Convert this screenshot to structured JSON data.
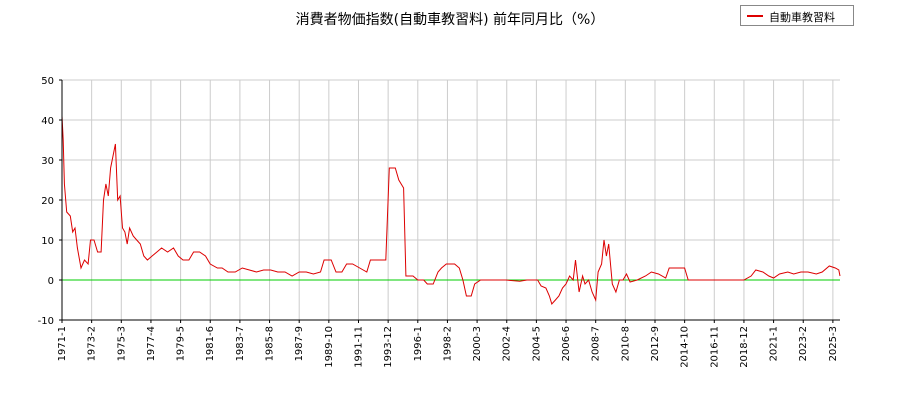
{
  "chart_data": {
    "type": "line",
    "title": "消費者物価指数(自動車教習料) 前年同月比（%）",
    "xlabel": "",
    "ylabel": "",
    "ylim": [
      -10,
      50
    ],
    "yticks": [
      "50",
      "40",
      "30",
      "20",
      "10",
      "0",
      "-10"
    ],
    "x_range": [
      "1971-01",
      "2025-09"
    ],
    "xticks": [
      "1971-1",
      "1973-2",
      "1975-3",
      "1977-4",
      "1979-5",
      "1981-6",
      "1983-7",
      "1985-8",
      "1987-9",
      "1989-10",
      "1991-11",
      "1993-12",
      "1996-1",
      "1998-2",
      "2000-3",
      "2002-4",
      "2004-5",
      "2006-6",
      "2008-7",
      "2010-8",
      "2012-9",
      "2014-10",
      "2016-11",
      "2018-12",
      "2021-1",
      "2023-2",
      "2025-3"
    ],
    "grid": true,
    "legend_position": "top-right",
    "zero_line_color": "#00cc00",
    "series": [
      {
        "name": "自動車教習料",
        "color": "#dd0000",
        "points": [
          [
            "1971-01",
            41
          ],
          [
            "1971-02",
            35
          ],
          [
            "1971-03",
            24
          ],
          [
            "1971-05",
            17
          ],
          [
            "1971-08",
            16
          ],
          [
            "1971-10",
            12
          ],
          [
            "1971-12",
            13
          ],
          [
            "1972-02",
            8
          ],
          [
            "1972-05",
            3
          ],
          [
            "1972-08",
            5
          ],
          [
            "1972-11",
            4
          ],
          [
            "1973-01",
            10
          ],
          [
            "1973-04",
            10
          ],
          [
            "1973-07",
            7
          ],
          [
            "1973-10",
            7
          ],
          [
            "1973-12",
            20
          ],
          [
            "1974-02",
            24
          ],
          [
            "1974-04",
            21
          ],
          [
            "1974-06",
            28
          ],
          [
            "1974-08",
            31
          ],
          [
            "1974-10",
            34
          ],
          [
            "1974-12",
            20
          ],
          [
            "1975-02",
            21
          ],
          [
            "1975-04",
            13
          ],
          [
            "1975-06",
            12
          ],
          [
            "1975-08",
            9
          ],
          [
            "1975-10",
            13
          ],
          [
            "1976-01",
            11
          ],
          [
            "1976-04",
            10
          ],
          [
            "1976-07",
            9
          ],
          [
            "1976-10",
            6
          ],
          [
            "1977-01",
            5
          ],
          [
            "1977-05",
            6
          ],
          [
            "1977-09",
            7
          ],
          [
            "1978-01",
            8
          ],
          [
            "1978-06",
            7
          ],
          [
            "1978-11",
            8
          ],
          [
            "1979-03",
            6
          ],
          [
            "1979-07",
            5
          ],
          [
            "1979-12",
            5
          ],
          [
            "1980-04",
            7
          ],
          [
            "1980-09",
            7
          ],
          [
            "1981-02",
            6
          ],
          [
            "1981-06",
            4
          ],
          [
            "1981-12",
            3
          ],
          [
            "1982-04",
            3
          ],
          [
            "1982-09",
            2
          ],
          [
            "1983-03",
            2
          ],
          [
            "1983-09",
            3
          ],
          [
            "1984-03",
            2.5
          ],
          [
            "1984-09",
            2
          ],
          [
            "1985-03",
            2.5
          ],
          [
            "1985-09",
            2.5
          ],
          [
            "1986-03",
            2
          ],
          [
            "1986-09",
            2
          ],
          [
            "1987-03",
            1
          ],
          [
            "1987-09",
            2
          ],
          [
            "1988-03",
            2
          ],
          [
            "1988-09",
            1.5
          ],
          [
            "1989-03",
            2
          ],
          [
            "1989-06",
            5
          ],
          [
            "1989-12",
            5
          ],
          [
            "1990-04",
            2
          ],
          [
            "1990-09",
            2
          ],
          [
            "1991-01",
            4
          ],
          [
            "1991-06",
            4
          ],
          [
            "1991-12",
            3
          ],
          [
            "1992-06",
            2
          ],
          [
            "1992-09",
            5
          ],
          [
            "1993-03",
            5
          ],
          [
            "1993-10",
            5
          ],
          [
            "1994-01",
            28
          ],
          [
            "1994-06",
            28
          ],
          [
            "1994-09",
            25
          ],
          [
            "1995-01",
            23
          ],
          [
            "1995-03",
            1
          ],
          [
            "1995-09",
            1
          ],
          [
            "1996-01",
            0
          ],
          [
            "1996-06",
            0
          ],
          [
            "1996-09",
            -1
          ],
          [
            "1997-02",
            -1
          ],
          [
            "1997-06",
            2
          ],
          [
            "1997-09",
            3
          ],
          [
            "1998-01",
            4
          ],
          [
            "1998-08",
            4
          ],
          [
            "1998-12",
            3
          ],
          [
            "1999-03",
            0
          ],
          [
            "1999-06",
            -4
          ],
          [
            "1999-10",
            -4
          ],
          [
            "2000-01",
            -1
          ],
          [
            "2000-06",
            0
          ],
          [
            "2001-03",
            0
          ],
          [
            "2002-03",
            0
          ],
          [
            "2003-03",
            -0.3
          ],
          [
            "2003-09",
            0
          ],
          [
            "2004-06",
            0
          ],
          [
            "2004-09",
            -1.5
          ],
          [
            "2005-01",
            -2
          ],
          [
            "2005-04",
            -4
          ],
          [
            "2005-06",
            -6
          ],
          [
            "2005-09",
            -5
          ],
          [
            "2005-12",
            -4
          ],
          [
            "2006-03",
            -2
          ],
          [
            "2006-06",
            -1
          ],
          [
            "2006-09",
            1
          ],
          [
            "2006-12",
            0
          ],
          [
            "2007-02",
            5
          ],
          [
            "2007-05",
            -3
          ],
          [
            "2007-08",
            1
          ],
          [
            "2007-10",
            -1
          ],
          [
            "2008-01",
            0
          ],
          [
            "2008-04",
            -3
          ],
          [
            "2008-07",
            -5
          ],
          [
            "2008-09",
            2
          ],
          [
            "2008-12",
            4
          ],
          [
            "2009-02",
            10
          ],
          [
            "2009-04",
            6
          ],
          [
            "2009-06",
            9
          ],
          [
            "2009-09",
            -1
          ],
          [
            "2009-12",
            -3
          ],
          [
            "2010-03",
            0
          ],
          [
            "2010-06",
            0
          ],
          [
            "2010-09",
            1.5
          ],
          [
            "2010-12",
            -0.5
          ],
          [
            "2011-06",
            0
          ],
          [
            "2012-01",
            1
          ],
          [
            "2012-06",
            2
          ],
          [
            "2012-12",
            1.5
          ],
          [
            "2013-06",
            0.5
          ],
          [
            "2013-09",
            3
          ],
          [
            "2014-03",
            3
          ],
          [
            "2014-10",
            3
          ],
          [
            "2015-01",
            0
          ],
          [
            "2016-01",
            0
          ],
          [
            "2017-01",
            0
          ],
          [
            "2018-06",
            0
          ],
          [
            "2018-12",
            0
          ],
          [
            "2019-06",
            1
          ],
          [
            "2019-10",
            2.5
          ],
          [
            "2020-04",
            2
          ],
          [
            "2020-09",
            1
          ],
          [
            "2021-01",
            0.5
          ],
          [
            "2021-06",
            1.5
          ],
          [
            "2022-01",
            2
          ],
          [
            "2022-06",
            1.5
          ],
          [
            "2022-12",
            2
          ],
          [
            "2023-06",
            2
          ],
          [
            "2024-01",
            1.5
          ],
          [
            "2024-06",
            2
          ],
          [
            "2024-12",
            3.5
          ],
          [
            "2025-05",
            3
          ],
          [
            "2025-08",
            2.5
          ],
          [
            "2025-09",
            1
          ]
        ]
      }
    ]
  }
}
